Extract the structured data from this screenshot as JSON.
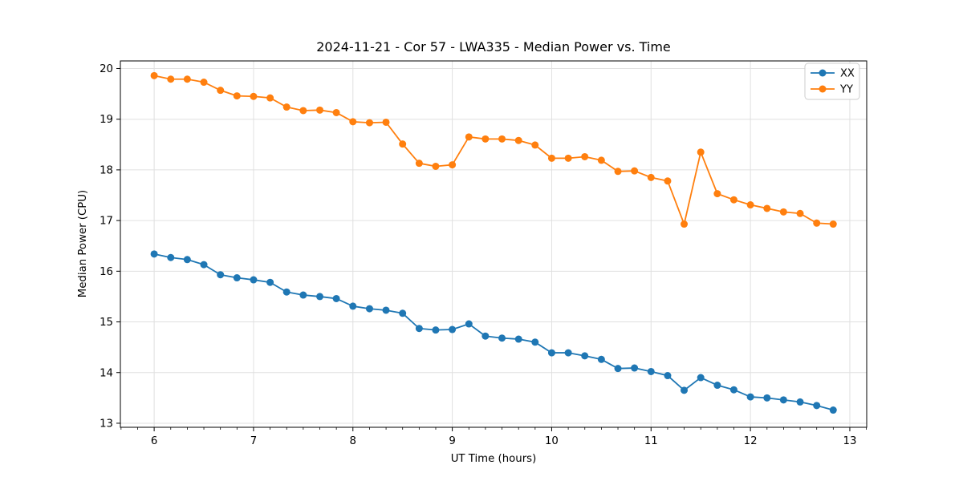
{
  "chart_data": {
    "type": "line",
    "title": "2024-11-21 - Cor 57 - LWA335 - Median Power vs. Time",
    "xlabel": "UT Time (hours)",
    "ylabel": "Median Power (CPU)",
    "xlim": [
      5.66,
      13.17
    ],
    "ylim": [
      12.92,
      20.15
    ],
    "xticks": [
      6,
      7,
      8,
      9,
      10,
      11,
      12,
      13
    ],
    "yticks": [
      13,
      14,
      15,
      16,
      17,
      18,
      19,
      20
    ],
    "x_minor_step": 0.16667,
    "grid": true,
    "grid_color": "#e0e0e0",
    "spine_color": "#000000",
    "legend_position": "upper right",
    "x": [
      6.0,
      6.167,
      6.333,
      6.5,
      6.667,
      6.833,
      7.0,
      7.167,
      7.333,
      7.5,
      7.667,
      7.833,
      8.0,
      8.167,
      8.333,
      8.5,
      8.667,
      8.833,
      9.0,
      9.167,
      9.333,
      9.5,
      9.667,
      9.833,
      10.0,
      10.167,
      10.333,
      10.5,
      10.667,
      10.833,
      11.0,
      11.167,
      11.333,
      11.5,
      11.667,
      11.833,
      12.0,
      12.167,
      12.333,
      12.5,
      12.667,
      12.833
    ],
    "series": [
      {
        "name": "XX",
        "color": "#1f77b4",
        "values": [
          16.34,
          16.27,
          16.23,
          16.13,
          15.93,
          15.87,
          15.83,
          15.78,
          15.59,
          15.53,
          15.5,
          15.46,
          15.31,
          15.26,
          15.23,
          15.17,
          14.87,
          14.84,
          14.85,
          14.96,
          14.72,
          14.68,
          14.66,
          14.6,
          14.39,
          14.39,
          14.33,
          14.26,
          14.08,
          14.09,
          14.02,
          13.94,
          13.65,
          13.9,
          13.75,
          13.66,
          13.52,
          13.5,
          13.46,
          13.42,
          13.35,
          13.26
        ]
      },
      {
        "name": "YY",
        "color": "#ff7f0e",
        "values": [
          19.86,
          19.79,
          19.79,
          19.73,
          19.57,
          19.46,
          19.45,
          19.42,
          19.24,
          19.17,
          19.18,
          19.13,
          18.95,
          18.93,
          18.94,
          18.51,
          18.13,
          18.07,
          18.1,
          18.65,
          18.61,
          18.61,
          18.58,
          18.49,
          18.23,
          18.23,
          18.26,
          18.19,
          17.97,
          17.98,
          17.85,
          17.78,
          16.93,
          18.35,
          17.53,
          17.41,
          17.31,
          17.24,
          17.17,
          17.14,
          16.95,
          16.93
        ]
      }
    ]
  },
  "legend": {
    "items": [
      {
        "label": "XX"
      },
      {
        "label": "YY"
      }
    ]
  }
}
